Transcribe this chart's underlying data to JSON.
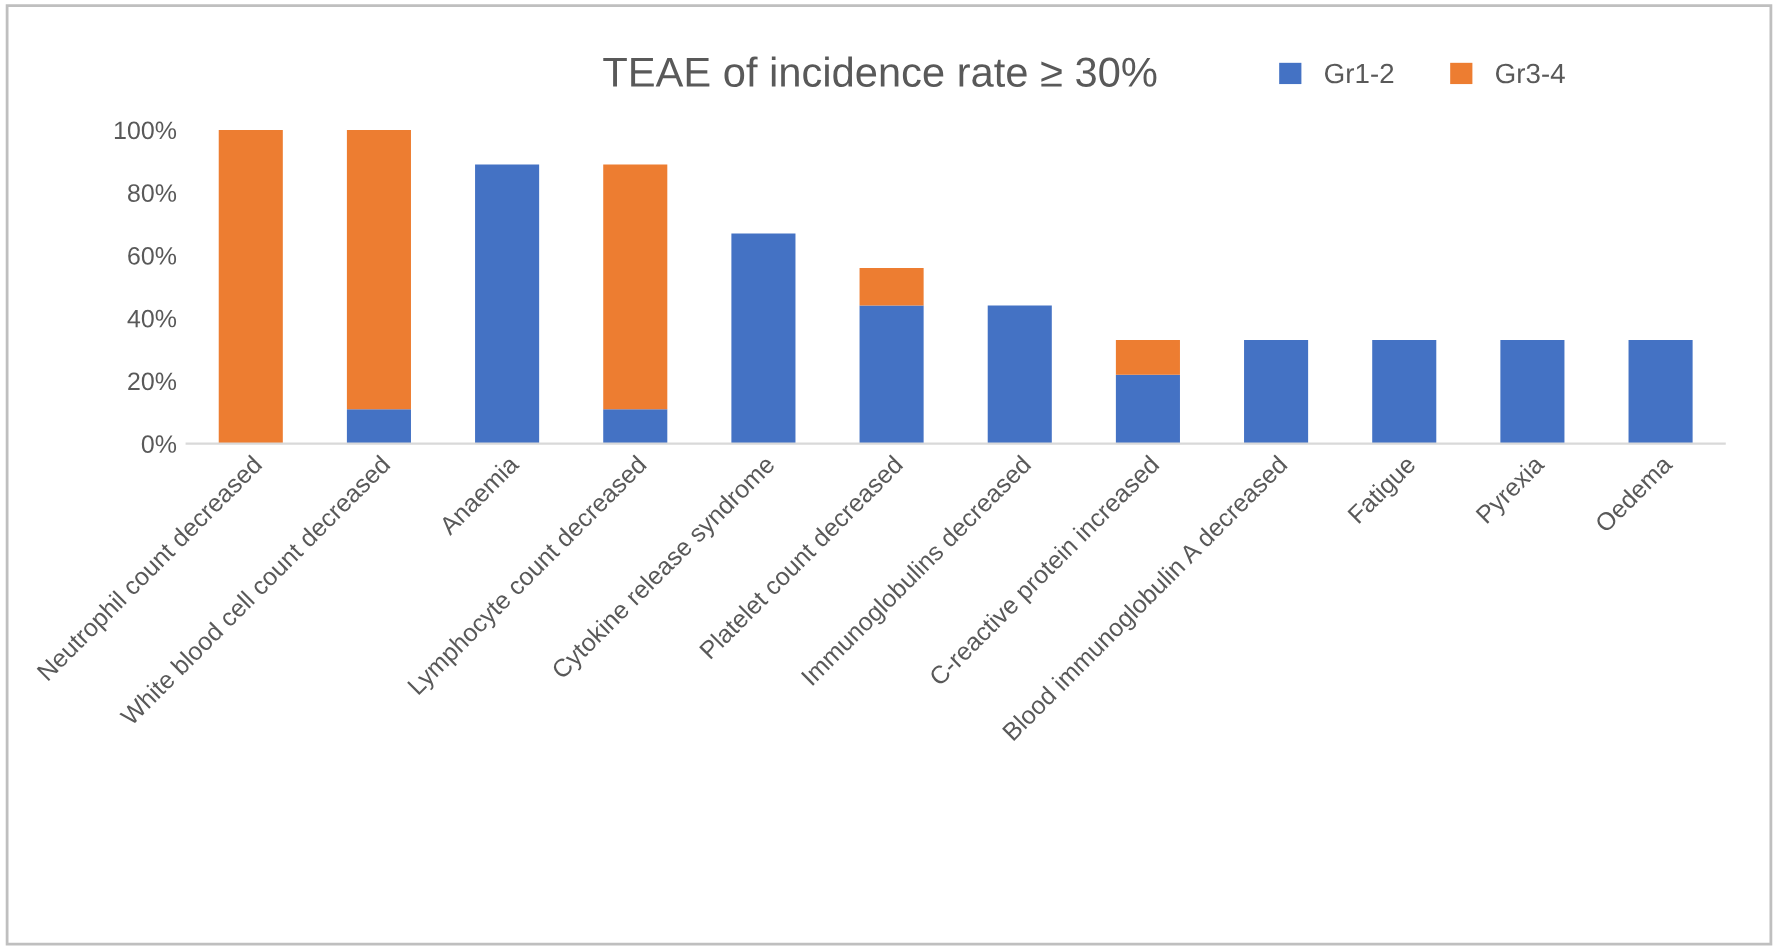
{
  "chart_data": {
    "type": "bar",
    "title": "TEAE of incidence rate ≥ 30%",
    "stacked": true,
    "categories": [
      "Neutrophil count decreased",
      "White blood cell count decreased",
      "Anaemia",
      "Lymphocyte count decreased",
      "Cytokine release syndrome",
      "Platelet count decreased",
      "Immunoglobulins decreased",
      "C-reactive protein increased",
      "Blood immunoglobulin A decreased",
      "Fatigue",
      "Pyrexia",
      "Oedema"
    ],
    "series": [
      {
        "name": "Gr1-2",
        "color": "#4472c4",
        "values": [
          0,
          11,
          89,
          11,
          67,
          44,
          44,
          22,
          33,
          33,
          33,
          33
        ]
      },
      {
        "name": "Gr3-4",
        "color": "#ed7d31",
        "values": [
          100,
          89,
          0,
          78,
          0,
          12,
          0,
          11,
          0,
          0,
          0,
          0
        ]
      }
    ],
    "ylim": [
      0,
      100
    ],
    "yticks": [
      {
        "value": 0,
        "label": "0%"
      },
      {
        "value": 20,
        "label": "20%"
      },
      {
        "value": 40,
        "label": "40%"
      },
      {
        "value": 60,
        "label": "60%"
      },
      {
        "value": 80,
        "label": "80%"
      },
      {
        "value": 100,
        "label": "100%"
      }
    ],
    "grid": false,
    "legend": "top right"
  }
}
